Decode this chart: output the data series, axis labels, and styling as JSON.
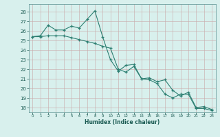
{
  "line1_x": [
    0,
    1,
    2,
    3,
    4,
    5,
    6,
    7,
    8,
    9,
    10,
    11,
    12,
    13,
    14,
    15,
    16,
    17,
    18,
    19,
    20,
    21,
    22,
    23
  ],
  "line1_y": [
    25.4,
    25.5,
    26.6,
    26.1,
    26.1,
    26.5,
    26.3,
    27.2,
    28.1,
    25.4,
    23.0,
    21.8,
    22.4,
    22.5,
    21.0,
    21.1,
    20.7,
    20.9,
    19.8,
    19.2,
    19.6,
    18.0,
    18.1,
    17.8
  ],
  "line2_x": [
    0,
    1,
    2,
    3,
    4,
    5,
    6,
    7,
    8,
    9,
    10,
    11,
    12,
    13,
    14,
    15,
    16,
    17,
    18,
    19,
    20,
    21,
    22,
    23
  ],
  "line2_y": [
    25.4,
    25.4,
    25.5,
    25.5,
    25.5,
    25.3,
    25.1,
    24.9,
    24.7,
    24.4,
    24.2,
    22.0,
    21.7,
    22.3,
    21.0,
    20.9,
    20.5,
    19.4,
    19.0,
    19.4,
    19.4,
    17.9,
    17.9,
    17.7
  ],
  "line_color": "#2d7f72",
  "bg_color": "#d8f0ed",
  "grid_color_minor": "#c2e4e0",
  "grid_color_major": "#a8d4d0",
  "xlabel": "Humidex (Indice chaleur)",
  "ylim": [
    17.5,
    28.8
  ],
  "xlim": [
    -0.5,
    23.5
  ],
  "yticks": [
    18,
    19,
    20,
    21,
    22,
    23,
    24,
    25,
    26,
    27,
    28
  ],
  "xticks": [
    0,
    1,
    2,
    3,
    4,
    5,
    6,
    7,
    8,
    9,
    10,
    11,
    12,
    13,
    14,
    15,
    16,
    17,
    18,
    19,
    20,
    21,
    22,
    23
  ]
}
